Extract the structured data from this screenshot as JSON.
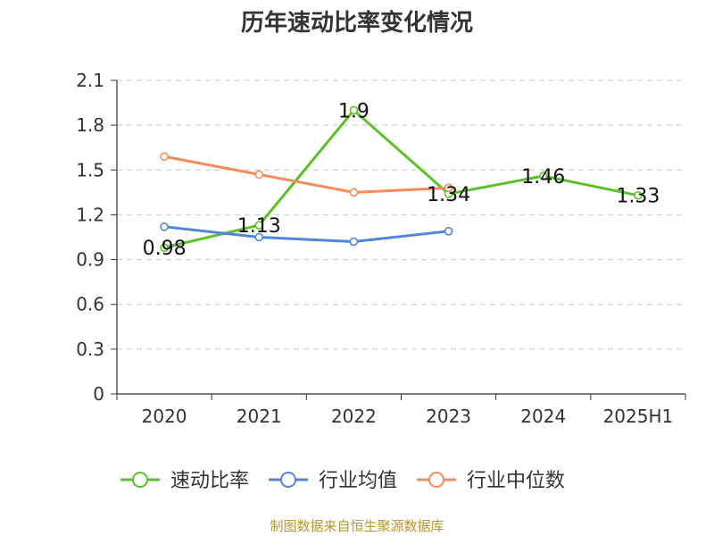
{
  "footer": {
    "source": "制图数据来自恒生聚源数据库"
  },
  "chart_data": {
    "type": "line",
    "title": "历年速动比率变化情况",
    "xlabel": "",
    "ylabel": "",
    "categories": [
      "2020",
      "2021",
      "2022",
      "2023",
      "2024",
      "2025H1"
    ],
    "ylim": [
      0,
      2.1
    ],
    "yticks": [
      0,
      0.3,
      0.6,
      0.9,
      1.2,
      1.5,
      1.8,
      2.1
    ],
    "ytick_labels": [
      "0",
      "0.3",
      "0.6",
      "0.9",
      "1.2",
      "1.5",
      "1.8",
      "2.1"
    ],
    "grid": true,
    "legend_position": "bottom",
    "series": [
      {
        "name": "速动比率",
        "color": "#5cc128",
        "values": [
          0.98,
          1.13,
          1.9,
          1.34,
          1.46,
          1.33
        ],
        "labels": [
          "0.98",
          "1.13",
          "1.9",
          "1.34",
          "1.46",
          "1.33"
        ]
      },
      {
        "name": "行业均值",
        "color": "#4f86db",
        "values": [
          1.12,
          1.05,
          1.02,
          1.09,
          null,
          null
        ]
      },
      {
        "name": "行业中位数",
        "color": "#f48c5a",
        "values": [
          1.59,
          1.47,
          1.35,
          1.38,
          null,
          null
        ]
      }
    ]
  }
}
